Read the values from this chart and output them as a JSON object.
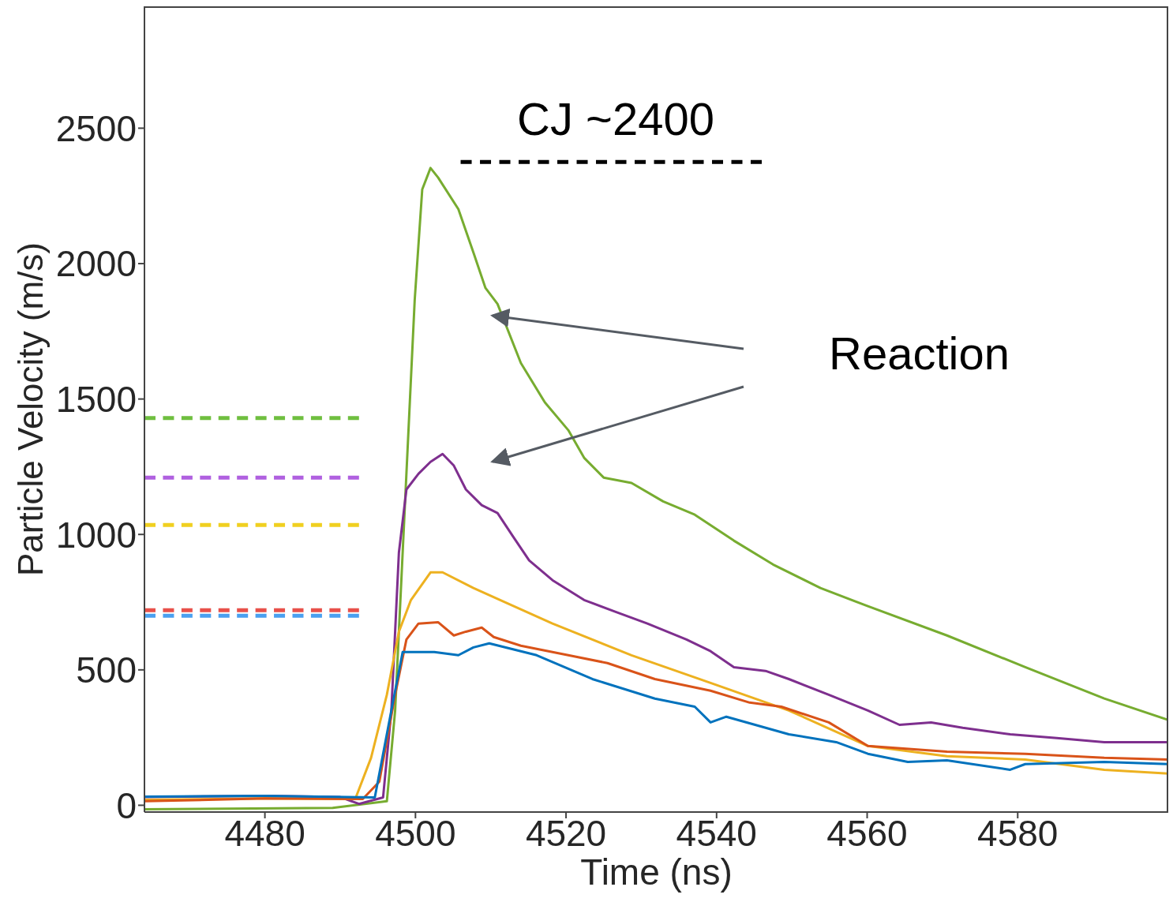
{
  "chart_data": {
    "type": "line",
    "xlabel": "Time (ns)",
    "ylabel": "Particle Velocity (m/s)",
    "xlim": [
      4464,
      4600
    ],
    "ylim": [
      -25,
      2950
    ],
    "xticks": [
      4480,
      4500,
      4520,
      4540,
      4560,
      4580
    ],
    "yticks": [
      0,
      500,
      1000,
      1500,
      2000,
      2500
    ],
    "annotations": [
      "CJ ~2400",
      "Reaction"
    ],
    "series": [
      {
        "color": "#77ac30",
        "line_style": "solid",
        "x": [
          4464,
          4489,
          4496.2,
          4497.3,
          4498.8,
          4499.9,
          4500.9,
          4502,
          4503,
          4505.7,
          4507.7,
          4509.3,
          4510.9,
          4514,
          4517.2,
          4520.3,
          4522.4,
          4525,
          4528.7,
          4532.9,
          4537.1,
          4542.3,
          4547.5,
          4553.8,
          4560.1,
          4570.6,
          4581,
          4591.5,
          4600
        ],
        "values": [
          -15,
          -10,
          15,
          350,
          1225,
          1866,
          2274,
          2353,
          2318,
          2201,
          2041,
          1910,
          1851,
          1633,
          1487,
          1385,
          1283,
          1210,
          1190,
          1122,
          1073,
          977,
          889,
          802,
          735,
          627,
          510,
          394,
          315
        ]
      },
      {
        "color": "#7e2f8e",
        "line_style": "solid",
        "x": [
          4464,
          4480,
          4490,
          4492.5,
          4495.7,
          4496.8,
          4497.8,
          4498.8,
          4500.4,
          4502,
          4503.6,
          4505.1,
          4506.7,
          4508.8,
          4510.9,
          4513,
          4515.1,
          4518.2,
          4522.4,
          4526.6,
          4530.8,
          4536,
          4539.2,
          4542.3,
          4546.5,
          4549.6,
          4554.9,
          4560.1,
          4564.3,
          4568.5,
          4572.7,
          4579,
          4585.2,
          4591.5,
          4600
        ],
        "values": [
          30,
          35,
          30,
          5,
          29,
          350,
          933,
          1166,
          1224,
          1268,
          1297,
          1254,
          1166,
          1108,
          1079,
          991,
          904,
          831,
          758,
          714,
          671,
          612,
          569,
          510,
          496,
          466,
          408,
          350,
          297,
          306,
          286,
          262,
          248,
          233,
          233
        ]
      },
      {
        "color": "#edb120",
        "line_style": "solid",
        "x": [
          4464,
          4480,
          4492,
          4494.1,
          4496.2,
          4497.8,
          4499.4,
          4502,
          4503.6,
          4507.7,
          4518.2,
          4528.7,
          4539.2,
          4549.6,
          4560.1,
          4570.6,
          4581,
          4591.5,
          4600
        ],
        "values": [
          20,
          25,
          23,
          175,
          408,
          641,
          758,
          860,
          860,
          802,
          671,
          554,
          452,
          350,
          219,
          181,
          169,
          131,
          117
        ]
      },
      {
        "color": "#d95319",
        "line_style": "solid",
        "x": [
          4464,
          4480,
          4493,
          4495.2,
          4497.3,
          4498.8,
          4500.4,
          4503,
          4505.1,
          4506.7,
          4508.8,
          4510.4,
          4514,
          4520.3,
          4525.5,
          4531.8,
          4539.2,
          4544.4,
          4548.6,
          4554.9,
          4560.1,
          4570.6,
          4581,
          4591.5,
          4600
        ],
        "values": [
          15,
          25,
          23,
          87,
          408,
          612,
          671,
          676,
          627,
          641,
          656,
          621,
          589,
          554,
          525,
          466,
          423,
          379,
          364,
          306,
          219,
          198,
          190,
          175,
          169
        ]
      },
      {
        "color": "#0072bd",
        "line_style": "solid",
        "x": [
          4464,
          4480,
          4494.6,
          4496.8,
          4498.3,
          4502.5,
          4505.7,
          4507.7,
          4509.8,
          4516.1,
          4523.5,
          4531.8,
          4537.1,
          4539.2,
          4541.3,
          4549.6,
          4555.9,
          4560.1,
          4565.4,
          4570.6,
          4579,
          4581,
          4591.5,
          4600
        ],
        "values": [
          32,
          35,
          29,
          350,
          566,
          566,
          554,
          583,
          598,
          554,
          466,
          394,
          364,
          306,
          327,
          262,
          233,
          190,
          160,
          166,
          131,
          152,
          160,
          152
        ]
      },
      {
        "color": "#6fbf3f",
        "line_style": "dashed",
        "x": [
          4464,
          4492.5
        ],
        "values": [
          1430,
          1430
        ]
      },
      {
        "color": "#b060e0",
        "line_style": "dashed",
        "x": [
          4464,
          4492.5
        ],
        "values": [
          1210,
          1210
        ]
      },
      {
        "color": "#f0d020",
        "line_style": "dashed",
        "x": [
          4464,
          4492.5
        ],
        "values": [
          1035,
          1035
        ]
      },
      {
        "color": "#e8504a",
        "line_style": "dashed",
        "x": [
          4464,
          4492.5
        ],
        "values": [
          720,
          720
        ]
      },
      {
        "color": "#4aa0f0",
        "line_style": "dashed",
        "x": [
          4464,
          4492.5
        ],
        "values": [
          700,
          700
        ]
      },
      {
        "color": "#000000",
        "line_style": "dashed",
        "x": [
          4506,
          4546
        ],
        "values": [
          2375,
          2375
        ]
      }
    ]
  }
}
